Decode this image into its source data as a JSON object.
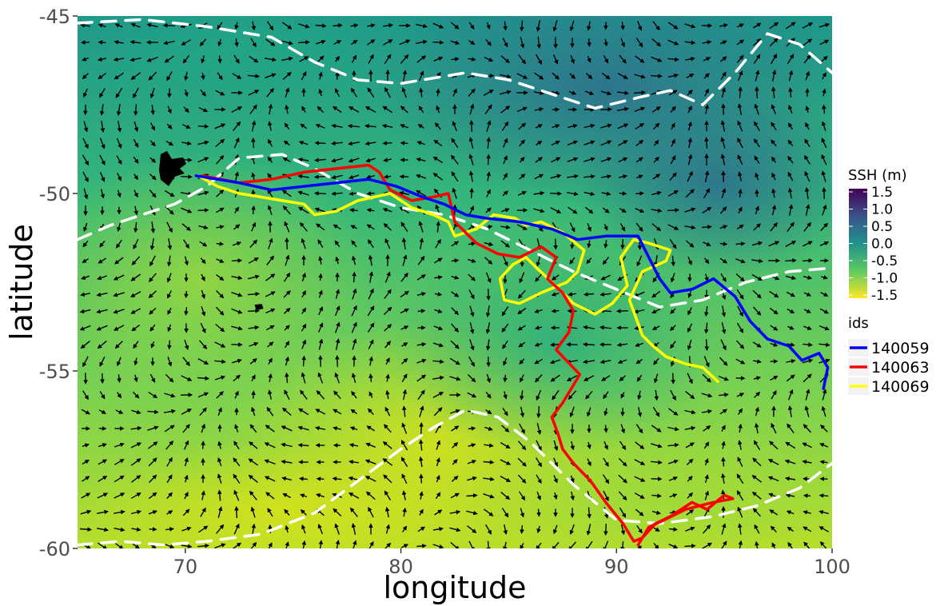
{
  "chart_data": {
    "type": "map",
    "xlabel": "longitude",
    "ylabel": "latitude",
    "xlim": [
      65,
      100
    ],
    "ylim": [
      -60,
      -45
    ],
    "x_ticks": [
      70,
      80,
      90,
      100
    ],
    "y_ticks": [
      -45,
      -50,
      -55,
      -60
    ],
    "x_tick_labels": [
      "70",
      "80",
      "90",
      "100"
    ],
    "y_tick_labels": [
      "-45",
      "-50",
      "-55",
      "-60"
    ],
    "grid": false,
    "background": {
      "variable_label": "SSH (m)",
      "colormap": "viridis",
      "range": [
        -1.5,
        1.5
      ],
      "ticks": [
        1.5,
        1.0,
        0.5,
        0.0,
        -0.5,
        -1.0,
        -1.5
      ],
      "tick_labels": [
        "1.5",
        "1.0",
        "0.5",
        "0.0",
        "-0.5",
        "-1.0",
        "-1.5"
      ]
    },
    "overlays": {
      "current_vectors": true,
      "front_lines": [
        [
          [
            65,
            -45.2
          ],
          [
            68,
            -45.1
          ],
          [
            71,
            -45.3
          ],
          [
            74,
            -45.6
          ],
          [
            76,
            -46.3
          ],
          [
            78,
            -46.8
          ],
          [
            80,
            -46.9
          ],
          [
            83,
            -46.6
          ],
          [
            85,
            -46.8
          ],
          [
            87,
            -47.2
          ],
          [
            89,
            -47.6
          ],
          [
            91,
            -47.3
          ],
          [
            92.5,
            -47.1
          ],
          [
            94,
            -47.5
          ],
          [
            95.5,
            -46.6
          ],
          [
            97,
            -45.5
          ],
          [
            98.5,
            -45.8
          ],
          [
            100,
            -46.6
          ]
        ],
        [
          [
            65,
            -51.3
          ],
          [
            66.5,
            -50.9
          ],
          [
            68,
            -50.6
          ],
          [
            69.5,
            -50.3
          ],
          [
            71,
            -49.8
          ],
          [
            72.5,
            -49.0
          ],
          [
            74.5,
            -48.9
          ],
          [
            76,
            -49.3
          ],
          [
            78,
            -50.0
          ],
          [
            80,
            -50.4
          ],
          [
            82,
            -50.6
          ],
          [
            84,
            -51.0
          ],
          [
            86,
            -51.6
          ],
          [
            88,
            -52.2
          ],
          [
            90,
            -52.7
          ],
          [
            92,
            -53.2
          ],
          [
            94,
            -53.0
          ],
          [
            96,
            -52.5
          ],
          [
            98,
            -52.2
          ],
          [
            100,
            -52.1
          ]
        ],
        [
          [
            65,
            -59.9
          ],
          [
            67,
            -59.8
          ],
          [
            69,
            -59.9
          ],
          [
            71,
            -59.8
          ],
          [
            73.5,
            -59.6
          ],
          [
            76,
            -59.0
          ],
          [
            78,
            -58.1
          ],
          [
            80,
            -57.2
          ],
          [
            81.5,
            -56.6
          ],
          [
            83,
            -56.1
          ],
          [
            84.5,
            -56.3
          ],
          [
            86,
            -57.0
          ],
          [
            88,
            -58.2
          ],
          [
            90,
            -59.2
          ],
          [
            92,
            -59.3
          ],
          [
            94.5,
            -59.1
          ],
          [
            96.5,
            -58.8
          ],
          [
            98.5,
            -58.3
          ],
          [
            100,
            -57.6
          ]
        ]
      ],
      "colony_patches": [
        {
          "lon": 69.3,
          "lat": -49.3
        },
        {
          "lon": 73.4,
          "lat": -53.2
        }
      ]
    },
    "legend": {
      "title": "ids",
      "placement": "right"
    },
    "series": [
      {
        "name": "140059",
        "color": "#0000ff",
        "lon": [
          70.5,
          72.5,
          74,
          75.5,
          77,
          78.5,
          79.8,
          81,
          82,
          83,
          84,
          85.5,
          87,
          88.2,
          89.5,
          91,
          91.5,
          92,
          92.5,
          93.5,
          94.5,
          95.5,
          96.2,
          97,
          98,
          98.6,
          99.4,
          99.8,
          99.6
        ],
        "lat": [
          -49.5,
          -49.7,
          -49.9,
          -49.8,
          -49.7,
          -49.6,
          -49.8,
          -50.1,
          -50.3,
          -50.6,
          -50.7,
          -50.8,
          -51.0,
          -51.3,
          -51.2,
          -51.2,
          -51.8,
          -52.4,
          -52.8,
          -52.7,
          -52.4,
          -52.9,
          -53.6,
          -54.1,
          -54.3,
          -54.7,
          -54.5,
          -54.9,
          -55.5
        ]
      },
      {
        "name": "140063",
        "color": "#ff0000",
        "lon": [
          70.8,
          72.5,
          74,
          75.5,
          77,
          78.5,
          79,
          79.5,
          80.5,
          81.5,
          82.2,
          82.5,
          83.5,
          84.5,
          85.5,
          86.5,
          87.2,
          86.8,
          87.5,
          88,
          87.8,
          87.2,
          88.3,
          87.5,
          87,
          87.3,
          87.5,
          88,
          88.8,
          89.5,
          90.3,
          90.8,
          91.2,
          91.8,
          92.5,
          93.5,
          94.2,
          95,
          95.4,
          94.5,
          93.2,
          92.2,
          91.5,
          91
        ],
        "lat": [
          -49.5,
          -49.7,
          -49.6,
          -49.4,
          -49.3,
          -49.2,
          -49.4,
          -49.9,
          -50.2,
          -50.1,
          -50.0,
          -50.8,
          -51.4,
          -51.7,
          -51.8,
          -51.5,
          -51.8,
          -52.4,
          -52.8,
          -53.3,
          -53.9,
          -54.4,
          -55.1,
          -55.9,
          -56.3,
          -56.8,
          -57.2,
          -57.6,
          -58.1,
          -58.7,
          -59.3,
          -59.8,
          -59.7,
          -59.3,
          -59.1,
          -58.7,
          -58.9,
          -58.5,
          -58.6,
          -58.7,
          -58.9,
          -59.2,
          -59.4,
          -59.9
        ]
      },
      {
        "name": "140069",
        "color": "#ffff00",
        "lon": [
          70.6,
          71.5,
          72.5,
          73.5,
          74.5,
          75.5,
          76,
          77,
          78,
          79.5,
          80.5,
          81.5,
          82.2,
          82.5,
          83.5,
          84.3,
          85.3,
          85.8,
          86.5,
          87.5,
          88.5,
          88.2,
          87.7,
          86.5,
          85.5,
          84.8,
          84.6,
          85.2,
          85.8,
          86.3,
          87,
          88,
          89,
          89.8,
          90.5,
          90.2,
          90.8,
          91.5,
          92.5,
          92.3,
          91.2,
          90.6,
          91.2,
          91.7,
          92.3,
          93.2,
          94,
          94.7
        ],
        "lat": [
          -49.5,
          -49.8,
          -50.0,
          -50.1,
          -50.2,
          -50.3,
          -50.6,
          -50.5,
          -50.2,
          -50.0,
          -50.4,
          -50.6,
          -50.8,
          -51.2,
          -51.0,
          -50.6,
          -50.7,
          -50.9,
          -50.8,
          -51.1,
          -51.6,
          -52.2,
          -52.5,
          -52.8,
          -53.1,
          -53.0,
          -52.4,
          -52.0,
          -51.8,
          -52.1,
          -52.5,
          -53.1,
          -53.4,
          -53.1,
          -52.6,
          -51.8,
          -51.3,
          -51.4,
          -51.6,
          -51.9,
          -52.2,
          -53.0,
          -54.0,
          -54.3,
          -54.6,
          -54.8,
          -54.9,
          -55.3
        ]
      }
    ]
  }
}
